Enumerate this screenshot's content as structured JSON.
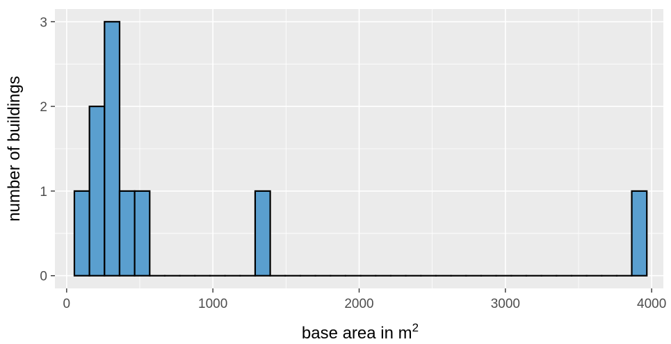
{
  "chart_data": {
    "type": "bar",
    "subtype": "histogram",
    "title": "",
    "xlabel": "base area in m",
    "xlabel_superscript": "2",
    "ylabel": "number of buildings",
    "xlim": [
      -80,
      4080
    ],
    "ylim": [
      -0.15,
      3.15
    ],
    "x_ticks": [
      0,
      1000,
      2000,
      3000,
      4000
    ],
    "y_ticks": [
      0,
      1,
      2,
      3
    ],
    "x_tick_labels": [
      "0",
      "1000",
      "2000",
      "3000",
      "4000"
    ],
    "y_tick_labels": [
      "0",
      "1",
      "2",
      "3"
    ],
    "bin_width": 103,
    "bin_start": 53,
    "values": [
      1,
      2,
      3,
      1,
      1,
      0,
      0,
      0,
      0,
      0,
      0,
      0,
      1,
      0,
      0,
      0,
      0,
      0,
      0,
      0,
      0,
      0,
      0,
      0,
      0,
      0,
      0,
      0,
      0,
      0,
      0,
      0,
      0,
      0,
      0,
      0,
      0,
      1
    ],
    "grid": true,
    "legend": "none",
    "colors": {
      "panel": "#ebebeb",
      "grid": "#ffffff",
      "bar_fill": "#5a9fcf",
      "bar_stroke": "#000000",
      "tick_text": "#4d4d4d",
      "tick_mark": "#333333"
    }
  }
}
